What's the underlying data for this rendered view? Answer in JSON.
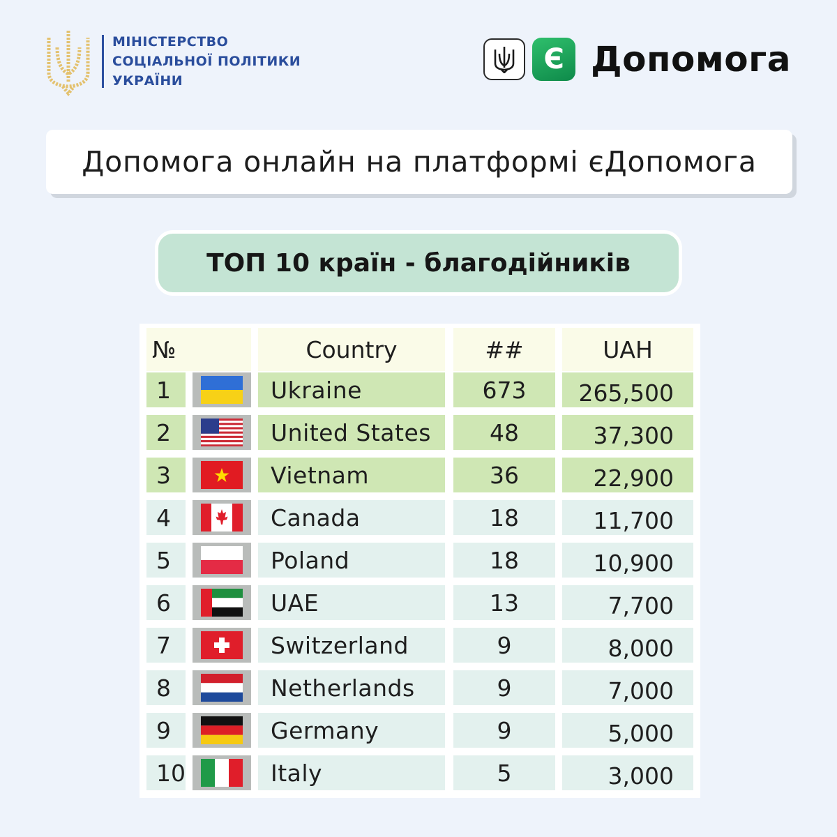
{
  "ministry": {
    "lines": [
      "МІНІСТЕРСТВО",
      "СОЦІАЛЬНОЇ ПОЛІТИКИ",
      "УКРАЇНИ"
    ]
  },
  "brand": {
    "e_letter": "Є",
    "name": "Допомога"
  },
  "title": "Допомога онлайн на платформі єДопомога",
  "subtitle": "ТОП 10 країн - благодійників",
  "table": {
    "headers": {
      "num": "№",
      "country": "Country",
      "count": "##",
      "uah": "UAH"
    },
    "rows": [
      {
        "num": "1",
        "flag": "ukraine-flag-icon",
        "country": "Ukraine",
        "count": "673",
        "uah": "265,500"
      },
      {
        "num": "2",
        "flag": "usa-flag-icon",
        "country": "United States",
        "count": "48",
        "uah": "37,300"
      },
      {
        "num": "3",
        "flag": "vietnam-flag-icon",
        "country": "Vietnam",
        "count": "36",
        "uah": "22,900"
      },
      {
        "num": "4",
        "flag": "canada-flag-icon",
        "country": "Canada",
        "count": "18",
        "uah": "11,700"
      },
      {
        "num": "5",
        "flag": "poland-flag-icon",
        "country": "Poland",
        "count": "18",
        "uah": "10,900"
      },
      {
        "num": "6",
        "flag": "uae-flag-icon",
        "country": "UAE",
        "count": "13",
        "uah": "7,700"
      },
      {
        "num": "7",
        "flag": "switzerland-flag-icon",
        "country": "Switzerland",
        "count": "9",
        "uah": "8,000"
      },
      {
        "num": "8",
        "flag": "netherlands-flag-icon",
        "country": "Netherlands",
        "count": "9",
        "uah": "7,000"
      },
      {
        "num": "9",
        "flag": "germany-flag-icon",
        "country": "Germany",
        "count": "9",
        "uah": "5,000"
      },
      {
        "num": "10",
        "flag": "italy-flag-icon",
        "country": "Italy",
        "count": "5",
        "uah": "3,000"
      }
    ]
  },
  "colors": {
    "top3_row": "#cfe7b4",
    "other_row": "#e3f1ee",
    "flag_column": "#b9bcba",
    "header_row": "#fafbe8",
    "ministry_blue": "#2a4d9c",
    "accent_green": "#1aa35a"
  }
}
